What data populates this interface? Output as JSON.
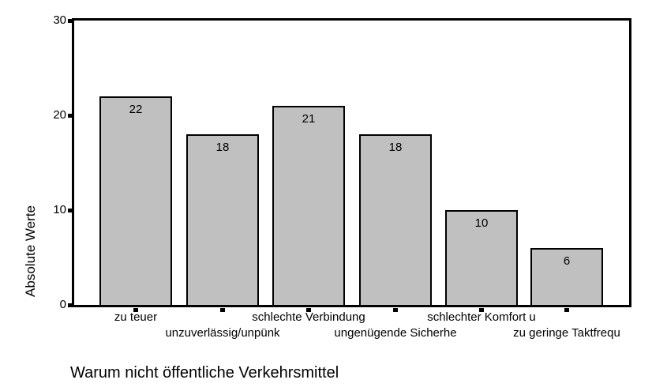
{
  "chart_data": {
    "type": "bar",
    "title": "",
    "xlabel": "Warum nicht öffentliche Verkehrsmittel",
    "ylabel": "Absolute Werte",
    "categories": [
      "zu teuer",
      "unzuverlässig/unpünk",
      "schlechte Verbindung",
      "ungenügende Sicherhe",
      "schlechter Komfort u",
      "zu geringe Taktfrequ"
    ],
    "values": [
      22,
      18,
      21,
      18,
      10,
      6
    ],
    "data_labels": [
      "22",
      "18",
      "21",
      "18",
      "10",
      "6"
    ],
    "ylim": [
      0,
      30
    ],
    "yticks": [
      0,
      10,
      20,
      30
    ],
    "ytick_labels": [
      "0",
      "10",
      "20",
      "30"
    ],
    "grid": false,
    "frame": true,
    "legend_position": "none",
    "colors": {
      "bar_fill": "#c0c0c0",
      "bar_border": "#000000",
      "axis": "#000000",
      "background": "#ffffff",
      "text": "#000000"
    }
  }
}
